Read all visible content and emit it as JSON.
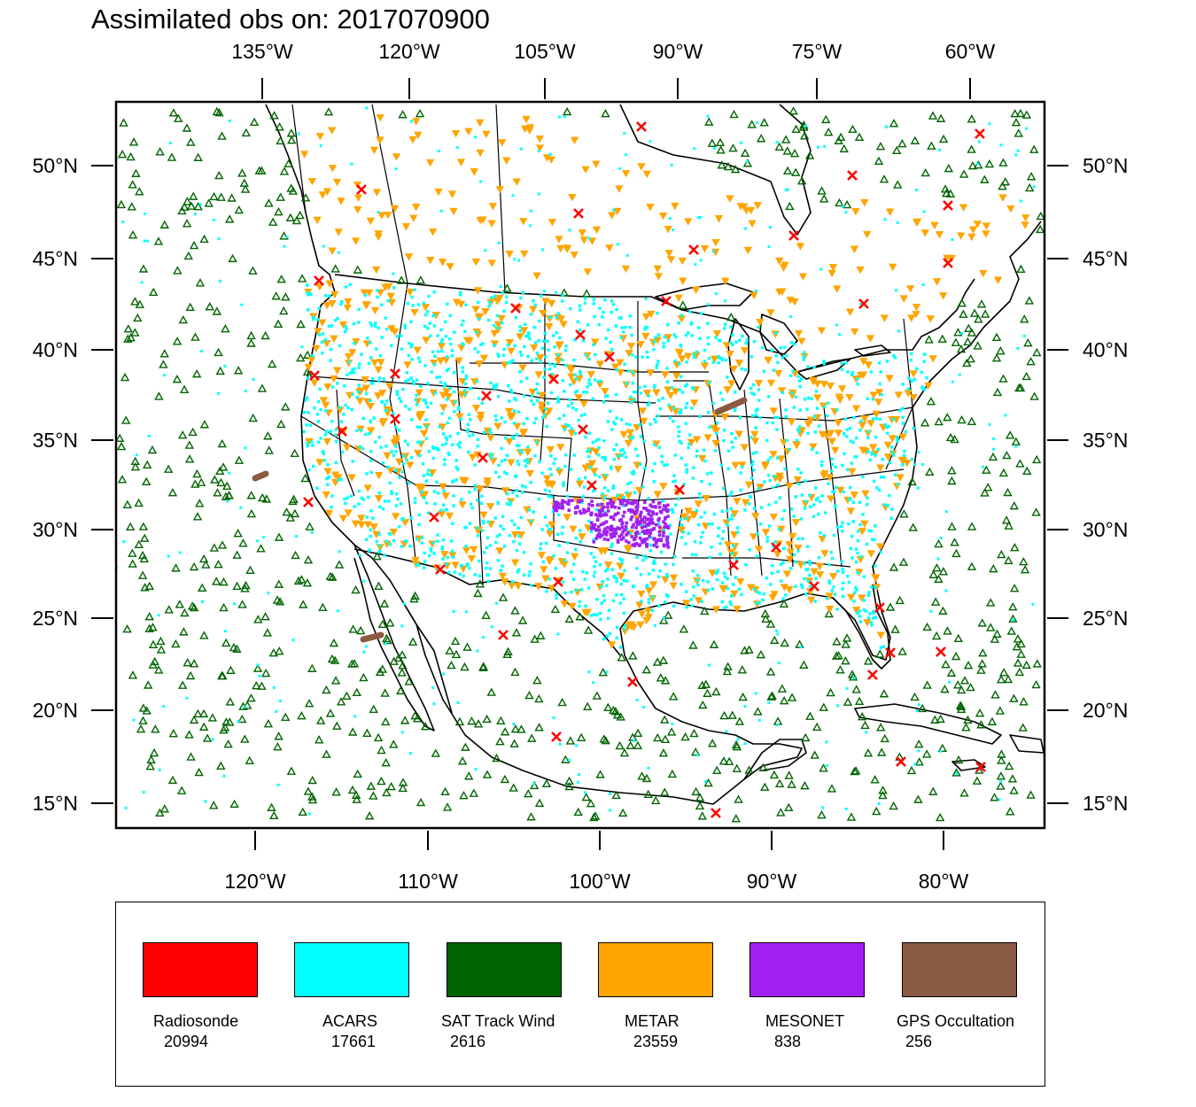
{
  "title": "Assimilated obs on: 2017070900",
  "map": {
    "top_lon_ticks": [
      "135°W",
      "120°W",
      "105°W",
      "90°W",
      "75°W",
      "60°W"
    ],
    "bottom_lon_ticks": [
      "120°W",
      "110°W",
      "100°W",
      "90°W",
      "80°W"
    ],
    "left_lat_ticks": [
      "50°N",
      "45°N",
      "40°N",
      "35°N",
      "30°N",
      "25°N",
      "20°N",
      "15°N"
    ],
    "right_lat_ticks": [
      "50°N",
      "45°N",
      "40°N",
      "35°N",
      "30°N",
      "25°N",
      "20°N",
      "15°N"
    ],
    "projection": "Lambert conformal (North America, CONUS)",
    "land_color": "#ffffff",
    "boundary_color": "#000000"
  },
  "legend": [
    {
      "name": "Radiosonde",
      "count": "20994",
      "color": "#ff0000",
      "marker": "x-icon"
    },
    {
      "name": "ACARS",
      "count": "17661",
      "color": "#00ffff",
      "marker": "square-dot-icon"
    },
    {
      "name": "SAT Track Wind",
      "count": "2616",
      "color": "#006400",
      "marker": "triangle-up-icon"
    },
    {
      "name": "METAR",
      "count": "23559",
      "color": "#ffa500",
      "marker": "triangle-down-icon"
    },
    {
      "name": "MESONET",
      "count": "838",
      "color": "#a020f0",
      "marker": "dot-icon"
    },
    {
      "name": "GPS Occultation",
      "count": "256",
      "color": "#8b5a42",
      "marker": "blob-icon"
    }
  ]
}
